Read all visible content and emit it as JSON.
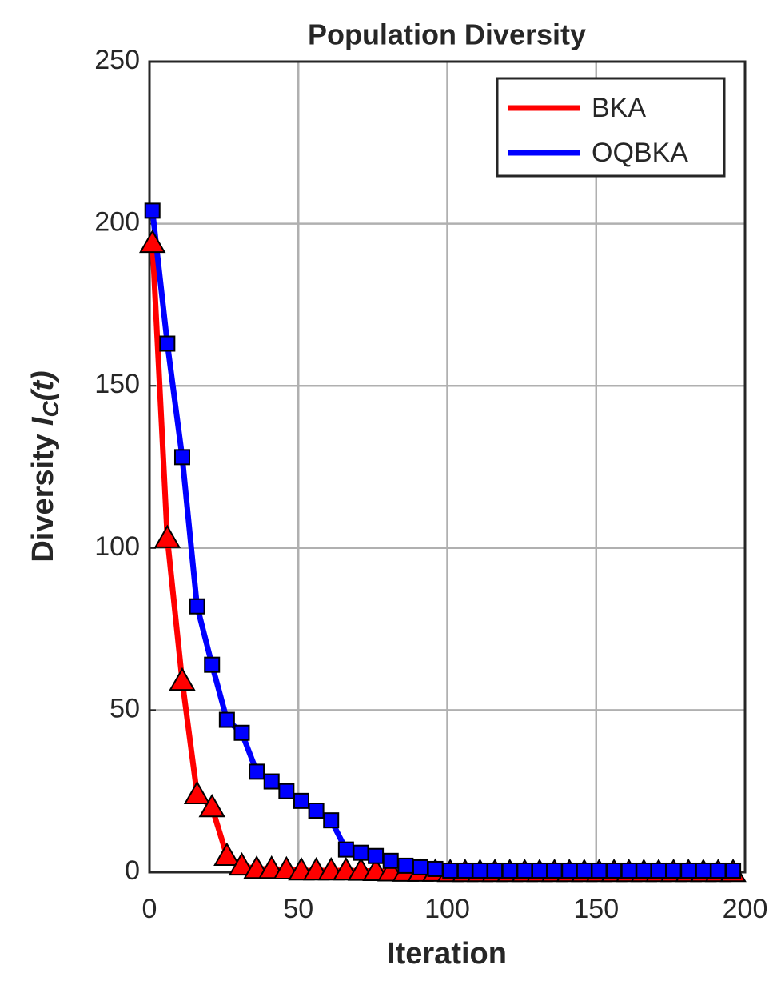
{
  "chart_data": {
    "type": "line",
    "title": "Population Diversity",
    "xlabel": "Iteration",
    "ylabel": {
      "text": "Diversity",
      "variable": "I",
      "subscript": "C",
      "argument": "(t)"
    },
    "x": [
      1,
      6,
      11,
      16,
      21,
      26,
      31,
      36,
      41,
      46,
      51,
      56,
      61,
      66,
      71,
      76,
      81,
      86,
      91,
      96,
      101,
      106,
      111,
      116,
      121,
      126,
      131,
      136,
      141,
      146,
      151,
      156,
      161,
      166,
      171,
      176,
      181,
      186,
      191,
      196
    ],
    "series": [
      {
        "name": "BKA",
        "color": "#ff0000",
        "marker": "triangle",
        "values": [
          194,
          103,
          59,
          24,
          20,
          5,
          2,
          1,
          1,
          0.8,
          0.5,
          0.5,
          0.5,
          0.5,
          0.4,
          0.3,
          0.2,
          0.1,
          0.1,
          0.1,
          0,
          0,
          0,
          0,
          0,
          0,
          0,
          0,
          0,
          0,
          0,
          0,
          0,
          0,
          0,
          0,
          0,
          0,
          0,
          0
        ]
      },
      {
        "name": "OQBKA",
        "color": "#0000ff",
        "marker": "square",
        "values": [
          204,
          163,
          128,
          82,
          64,
          47,
          43,
          31,
          28,
          25,
          22,
          19,
          16,
          7,
          6,
          5,
          3.5,
          2,
          1.5,
          1,
          0.5,
          0.5,
          0.5,
          0.5,
          0.5,
          0.5,
          0.5,
          0.5,
          0.5,
          0.5,
          0.5,
          0.5,
          0.5,
          0.5,
          0.5,
          0.5,
          0.5,
          0.5,
          0.5,
          0.5
        ]
      }
    ],
    "xlim": [
      0,
      200
    ],
    "xticks": [
      0,
      50,
      100,
      150,
      200
    ],
    "ylim": [
      0,
      250
    ],
    "yticks": [
      0,
      50,
      100,
      150,
      200,
      250
    ],
    "grid": true,
    "legend": "northeast"
  }
}
